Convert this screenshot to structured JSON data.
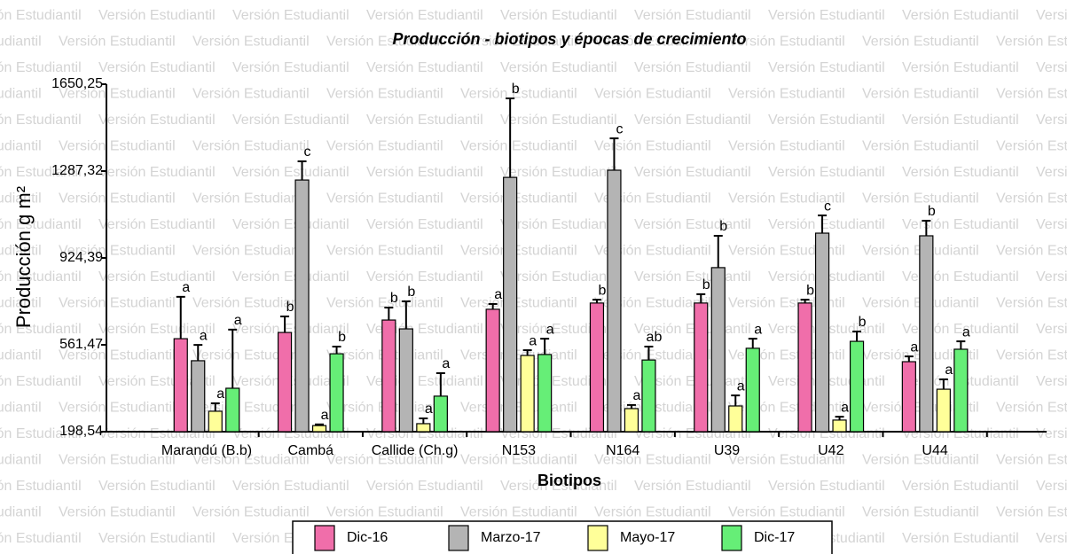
{
  "watermark": "Versión Estudiantil",
  "chart_data": {
    "type": "bar",
    "title": "Producción - biotipos y épocas de crecimiento",
    "x_label": "Biotipos",
    "y_label": "Producción g m²",
    "categories": [
      "Marandú (B.b)",
      "Cambá",
      "Callide (Ch.g)",
      "N153",
      "N164",
      "U39",
      "U42",
      "U44"
    ],
    "ylim": [
      198.54,
      1650.25
    ],
    "yticks": [
      {
        "value": 198.54,
        "label": "198,54"
      },
      {
        "value": 561.47,
        "label": "561,47"
      },
      {
        "value": 924.39,
        "label": "924,39"
      },
      {
        "value": 1287.32,
        "label": "1287,32"
      },
      {
        "value": 1650.25,
        "label": "1650,25"
      }
    ],
    "legend": "bottom",
    "series": [
      {
        "name": "Dic-16",
        "color": "#f06eaa",
        "values": [
          587,
          613,
          665,
          710,
          736,
          736,
          736,
          491
        ],
        "errors": [
          175,
          67,
          52,
          22,
          14,
          37,
          14,
          22
        ],
        "labels": [
          "a",
          "b",
          "b",
          "a",
          "b",
          "b",
          "b",
          "a"
        ]
      },
      {
        "name": "Marzo-17",
        "color": "#b4b4b4",
        "values": [
          495,
          1250,
          628,
          1261,
          1291,
          884,
          1028,
          1017
        ],
        "errors": [
          66,
          78,
          115,
          330,
          133,
          133,
          74,
          63
        ],
        "labels": [
          "a",
          "c",
          "b",
          "b",
          "c",
          "b",
          "c",
          "b"
        ]
      },
      {
        "name": "Mayo-17",
        "color": "#ffff99",
        "values": [
          284,
          224,
          232,
          517,
          295,
          306,
          247,
          376
        ],
        "errors": [
          33,
          5,
          22,
          22,
          15,
          44,
          14,
          41
        ],
        "labels": [
          "a",
          "a",
          "a",
          "a",
          "a",
          "a",
          "a",
          "a"
        ]
      },
      {
        "name": "Dic-17",
        "color": "#66ee77",
        "values": [
          380,
          524,
          347,
          521,
          498,
          547,
          576,
          543
        ],
        "errors": [
          245,
          30,
          96,
          66,
          56,
          40,
          41,
          33
        ],
        "labels": [
          "a",
          "b",
          "a",
          "a",
          "ab",
          "a",
          "b",
          "a"
        ]
      }
    ]
  }
}
